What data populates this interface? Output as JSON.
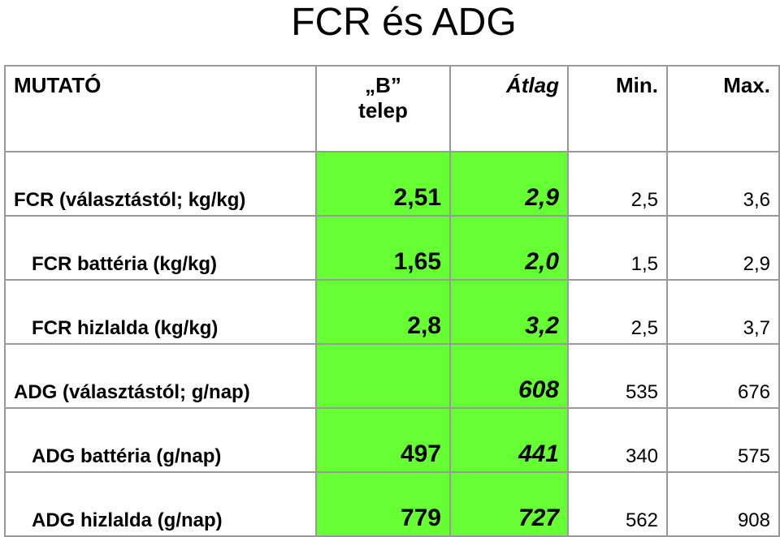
{
  "title": "FCR és ADG",
  "table": {
    "header": [
      "MUTATÓ",
      "„B”\ntelep",
      "Átlag",
      "Min.",
      "Max."
    ],
    "rows": [
      [
        "FCR (választástól; kg/kg)",
        "2,51",
        "2,9",
        "2,5",
        "3,6"
      ],
      [
        "FCR battéria (kg/kg)",
        "1,65",
        "2,0",
        "1,5",
        "2,9"
      ],
      [
        "FCR hizlalda (kg/kg)",
        "2,8",
        "3,2",
        "2,5",
        "3,7"
      ],
      [
        "ADG (választástól; g/nap)",
        null,
        "608",
        "535",
        "676"
      ],
      [
        "ADG battéria (g/nap)",
        "497",
        "441",
        "340",
        "575"
      ],
      [
        "ADG hizlalda (g/nap)",
        "779",
        "727",
        "562",
        "908"
      ]
    ]
  }
}
